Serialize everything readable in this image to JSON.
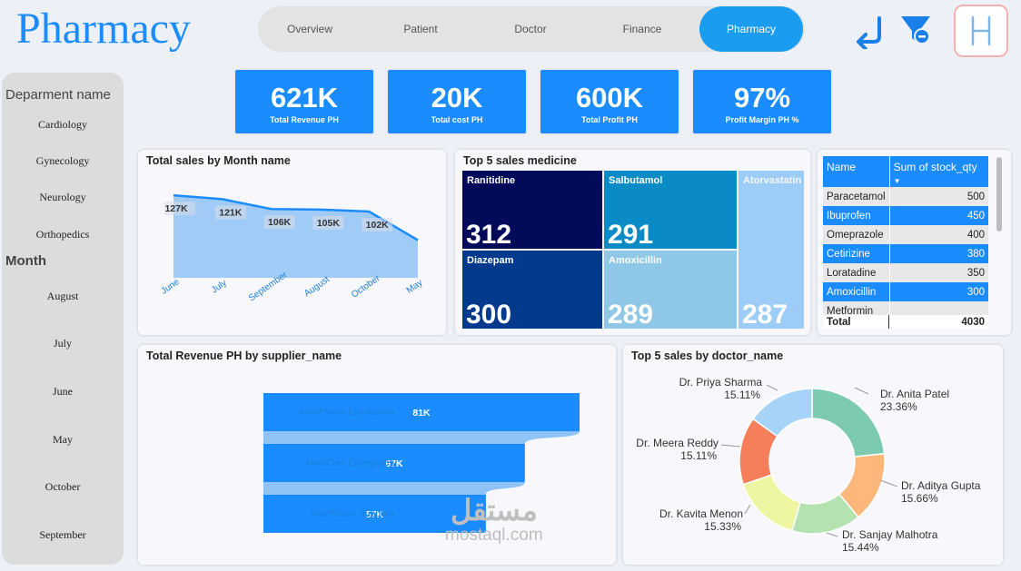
{
  "page": {
    "title": "Pharmacy"
  },
  "nav": {
    "tabs": [
      "Overview",
      "Patient",
      "Doctor",
      "Finance",
      "Pharmacy"
    ],
    "active_index": 4
  },
  "icons": {
    "back": "back-arrow-icon",
    "filter": "clear-filter-icon",
    "logo": "logo-icon"
  },
  "slicer": {
    "department": {
      "header": "Deparment name",
      "items": [
        "Cardiology",
        "Gynecology",
        "Neurology",
        "Orthopedics"
      ]
    },
    "month": {
      "header": "Month",
      "items": [
        "August",
        "July",
        "June",
        "May",
        "October",
        "September"
      ]
    }
  },
  "kpis": [
    {
      "value": "621K",
      "label": "Total Revenue PH"
    },
    {
      "value": "20K",
      "label": "Total cost PH"
    },
    {
      "value": "600K",
      "label": "Total Profit PH"
    },
    {
      "value": "97%",
      "label": "Profit Margin PH %"
    }
  ],
  "area_chart": {
    "title": "Total sales by Month name"
  },
  "treemap": {
    "title": "Top 5 sales medicine",
    "items": [
      {
        "name": "Ranitidine",
        "value": "312"
      },
      {
        "name": "Salbutamol",
        "value": "291"
      },
      {
        "name": "Atorvastatin",
        "value": "287"
      },
      {
        "name": "Diazepam",
        "value": "300"
      },
      {
        "name": "Amoxicillin",
        "value": "289"
      }
    ]
  },
  "stock_table": {
    "headers": [
      "Name",
      "Sum of stock_qty"
    ],
    "rows": [
      {
        "name": "Paracetamol",
        "qty": "500"
      },
      {
        "name": "Ibuprofen",
        "qty": "450"
      },
      {
        "name": "Omeprazole",
        "qty": "400"
      },
      {
        "name": "Cetirizine",
        "qty": "380"
      },
      {
        "name": "Loratadine",
        "qty": "350"
      },
      {
        "name": "Amoxicillin",
        "qty": "300"
      },
      {
        "name": "Metformin",
        "qty": ""
      }
    ],
    "total_label": "Total",
    "total_value": "4030"
  },
  "bar_chart": {
    "title": "Total Revenue PH by supplier_name"
  },
  "donut_chart": {
    "title": "Top 5 sales by doctor_name"
  },
  "watermark": {
    "arabic": "مستقل",
    "latin": "mostaql.com"
  },
  "chart_data": [
    {
      "type": "area",
      "title": "Total sales by Month name",
      "categories": [
        "June",
        "July",
        "September",
        "August",
        "October",
        "May"
      ],
      "values": [
        127,
        121,
        106,
        105,
        102,
        58
      ],
      "data_labels": [
        "127K",
        "121K",
        "106K",
        "105K",
        "102K",
        ""
      ],
      "color": "#1a8cff",
      "fill": "#92c3f6"
    },
    {
      "type": "treemap",
      "title": "Top 5 sales medicine",
      "categories": [
        "Ranitidine",
        "Diazepam",
        "Salbutamol",
        "Amoxicillin",
        "Atorvastatin"
      ],
      "values": [
        312,
        300,
        291,
        289,
        287
      ],
      "colors": [
        "#030a5a",
        "#043a8e",
        "#0a8bc6",
        "#8fc7e6",
        "#9dcdf6"
      ]
    },
    {
      "type": "bar",
      "orientation": "horizontal",
      "title": "Total Revenue PH by supplier_name",
      "categories": [
        "MediPharm Distributors",
        "MediCore Enterprises",
        "HealthCare Supplies"
      ],
      "values": [
        81,
        67,
        57
      ],
      "data_labels": [
        "81K",
        "67K",
        "57K"
      ],
      "xlim": [
        0,
        81
      ],
      "color": "#1a8cff",
      "ribbon_color": "#8fc3f6"
    },
    {
      "type": "pie",
      "donut": true,
      "title": "Top 5 sales by doctor_name",
      "categories": [
        "Dr. Anita Patel",
        "Dr. Aditya Gupta",
        "Dr. Sanjay Malhotra",
        "Dr. Kavita Menon",
        "Dr. Meera Reddy",
        "Dr. Priya Sharma"
      ],
      "values": [
        23.36,
        15.66,
        15.44,
        15.33,
        15.11,
        15.11
      ],
      "data_labels": [
        "23.36%",
        "15.66%",
        "15.44%",
        "15.33%",
        "15.11%",
        "15.11%"
      ],
      "colors": [
        "#7ccbb1",
        "#fdb77a",
        "#b5e2b1",
        "#eef6a1",
        "#f57f5b",
        "#a6d4f8"
      ]
    }
  ],
  "colors": {
    "accent": "#1a8cff",
    "nav_bg": "#e3e3e3",
    "slicer_bg": "#dcdcdc"
  }
}
